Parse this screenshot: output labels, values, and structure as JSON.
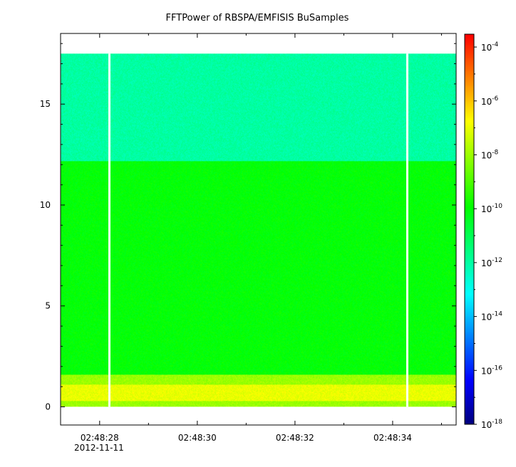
{
  "chart_data": {
    "type": "heatmap",
    "title": "FFTPower of RBSPA/EMFISIS  BuSamples",
    "xlabel": "",
    "ylabel": "",
    "x_tick_labels": [
      "02:48:28",
      "02:48:30",
      "02:48:32",
      "02:48:34"
    ],
    "x_tick_values_seconds": [
      28,
      30,
      32,
      34
    ],
    "x_range_seconds": [
      27.2,
      35.3
    ],
    "x_first_tick_date": "2012-11-11",
    "y_tick_labels": [
      "0",
      "5",
      "10",
      "15"
    ],
    "y_tick_values": [
      0,
      5,
      10,
      15
    ],
    "y_range": [
      -0.9,
      18.5
    ],
    "data_y_max": 17.5,
    "data_gaps_seconds": [
      28.2,
      34.3
    ],
    "colorbar": {
      "scale": "log",
      "range": [
        1e-18,
        0.0003
      ],
      "tick_bases": [
        "10",
        "10",
        "10",
        "10",
        "10",
        "10",
        "10",
        "10"
      ],
      "tick_exponents": [
        "-4",
        "-6",
        "-8",
        "-10",
        "-12",
        "-14",
        "-16",
        "-18"
      ],
      "tick_values": [
        0.0001,
        1e-06,
        1e-08,
        1e-10,
        1e-12,
        1e-14,
        1e-16,
        1e-18
      ],
      "colors": [
        "#00007f",
        "#0000ff",
        "#0080ff",
        "#00ffff",
        "#00ff80",
        "#00ff00",
        "#80ff00",
        "#ffff00",
        "#ff8000",
        "#ff0000"
      ]
    },
    "bands": [
      {
        "y_range": [
          12.2,
          17.5
        ],
        "level": 1e-12
      },
      {
        "y_range": [
          1.6,
          12.2
        ],
        "level": 1e-10
      },
      {
        "y_range": [
          1.1,
          1.6
        ],
        "level": 1e-08
      },
      {
        "y_range": [
          0.3,
          1.1
        ],
        "level": 1e-07
      },
      {
        "y_range": [
          0.0,
          0.3
        ],
        "level": 1e-08
      }
    ]
  }
}
